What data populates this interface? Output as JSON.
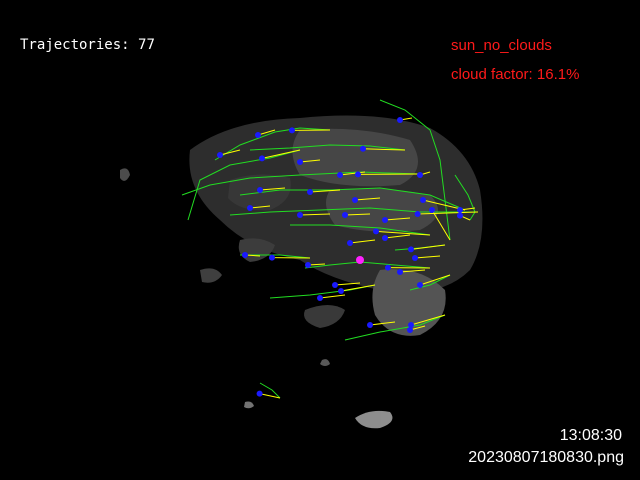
{
  "overlay": {
    "trajectories_label": "Trajectories:",
    "trajectories_count": "77",
    "condition_label": "sun_no_clouds",
    "cloud_factor_label": "cloud factor:",
    "cloud_factor_value": "16.1%",
    "time": "13:08:30",
    "filename": "20230807180830.png"
  },
  "colors": {
    "background": "#000000",
    "overlay_text": "#ffffff",
    "status_text": "#ff1a1a",
    "trajectory_line": "#22dd22",
    "motion_vector": "#ffff00",
    "feature_point": "#1a1aff",
    "sun_marker": "#ff22ff",
    "cloud_fill": "#6a6a6a"
  },
  "icons": {
    "sun_marker": "sun-position-marker",
    "feature_point": "tracked-feature-dot"
  }
}
